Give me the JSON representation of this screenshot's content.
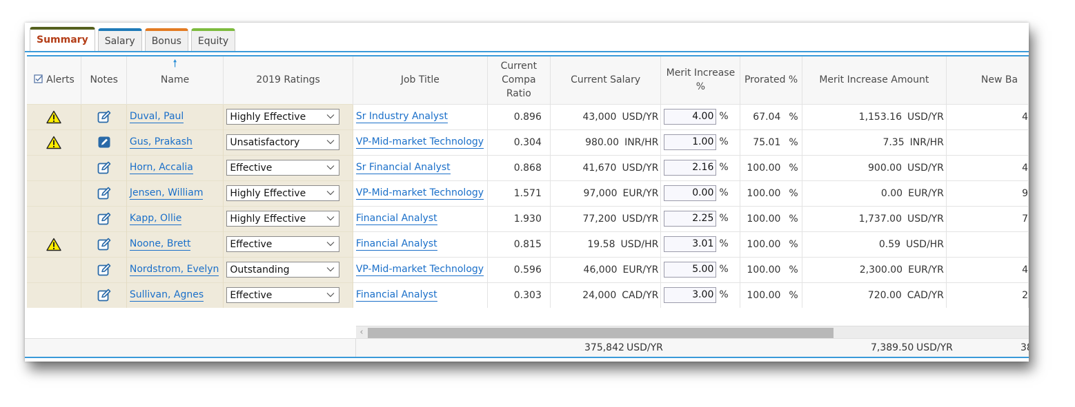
{
  "tabs": [
    {
      "label": "Summary",
      "active": true,
      "color": "#55601e"
    },
    {
      "label": "Salary",
      "color": "#1f7ab8"
    },
    {
      "label": "Bonus",
      "color": "#e37b23"
    },
    {
      "label": "Equity",
      "color": "#7dbb3e"
    }
  ],
  "columns": {
    "alerts": "Alerts",
    "notes": "Notes",
    "name": "Name",
    "ratings": "2019 Ratings",
    "job_title": "Job Title",
    "compa_l1": "Current",
    "compa_l2": "Compa",
    "compa_l3": "Ratio",
    "salary": "Current Salary",
    "merit_l1": "Merit Increase",
    "merit_l2": "%",
    "prorated": "Prorated %",
    "merit_amount": "Merit Increase Amount",
    "new_base": "New Ba"
  },
  "rows": [
    {
      "alert": true,
      "note": "edit",
      "name": "Duval, Paul",
      "rating": "Highly Effective",
      "job": "Sr Industry Analyst",
      "compa": "0.896",
      "salary": "43,000",
      "sal_unit": "USD/YR",
      "merit": "4.00",
      "prorated": "67.04",
      "amount": "1,153.16",
      "amt_unit": "USD/YR",
      "newbase": "4"
    },
    {
      "alert": true,
      "note": "filled",
      "name": "Gus, Prakash",
      "rating": "Unsatisfactory",
      "job": "VP-Mid-market Technology",
      "compa": "0.304",
      "salary": "980.00",
      "sal_unit": "INR/HR",
      "merit": "1.00",
      "prorated": "75.01",
      "amount": "7.35",
      "amt_unit": "INR/HR",
      "newbase": ""
    },
    {
      "alert": false,
      "note": "edit",
      "name": "Horn, Accalia",
      "rating": "Effective",
      "job": "Sr Financial Analyst",
      "compa": "0.868",
      "salary": "41,670",
      "sal_unit": "USD/YR",
      "merit": "2.16",
      "prorated": "100.00",
      "amount": "900.00",
      "amt_unit": "USD/YR",
      "newbase": "4"
    },
    {
      "alert": false,
      "note": "edit",
      "name": "Jensen, William",
      "rating": "Highly Effective",
      "job": "VP-Mid-market Technology",
      "compa": "1.571",
      "salary": "97,000",
      "sal_unit": "EUR/YR",
      "merit": "0.00",
      "prorated": "100.00",
      "amount": "0.00",
      "amt_unit": "EUR/YR",
      "newbase": "9"
    },
    {
      "alert": false,
      "note": "edit",
      "name": "Kapp, Ollie",
      "rating": "Highly Effective",
      "job": "Financial Analyst",
      "compa": "1.930",
      "salary": "77,200",
      "sal_unit": "USD/YR",
      "merit": "2.25",
      "prorated": "100.00",
      "amount": "1,737.00",
      "amt_unit": "USD/YR",
      "newbase": "7"
    },
    {
      "alert": true,
      "note": "edit",
      "name": "Noone, Brett",
      "rating": "Effective",
      "job": "Financial Analyst",
      "compa": "0.815",
      "salary": "19.58",
      "sal_unit": "USD/HR",
      "merit": "3.01",
      "prorated": "100.00",
      "amount": "0.59",
      "amt_unit": "USD/HR",
      "newbase": ""
    },
    {
      "alert": false,
      "note": "edit",
      "name": "Nordstrom, Evelyn",
      "rating": "Outstanding",
      "job": "VP-Mid-market Technology",
      "compa": "0.596",
      "salary": "46,000",
      "sal_unit": "EUR/YR",
      "merit": "5.00",
      "prorated": "100.00",
      "amount": "2,300.00",
      "amt_unit": "EUR/YR",
      "newbase": "4"
    },
    {
      "alert": false,
      "note": "edit",
      "name": "Sullivan, Agnes",
      "rating": "Effective",
      "job": "Financial Analyst",
      "compa": "0.303",
      "salary": "24,000",
      "sal_unit": "CAD/YR",
      "merit": "3.00",
      "prorated": "100.00",
      "amount": "720.00",
      "amt_unit": "CAD/YR",
      "newbase": "2"
    }
  ],
  "pct_symbol": "%",
  "totals": {
    "salary": "375,842",
    "salary_unit": "USD/YR",
    "amount": "7,389.50",
    "amount_unit": "USD/YR",
    "newbase": "38"
  },
  "colors": {
    "accent": "#3a9ad9",
    "link": "#1a6fc9",
    "frozen_bg": "#efeadb",
    "active_tab_text": "#b43e18"
  },
  "icons": {
    "alert": "warning-triangle-icon",
    "note_edit": "note-edit-icon",
    "note_filled": "note-filled-icon",
    "sort": "sort-up-arrow-icon",
    "alerts_header": "alerts-checkbox-icon",
    "dropdown": "chevron-down-icon",
    "scroll_left": "scroll-left-arrow"
  }
}
